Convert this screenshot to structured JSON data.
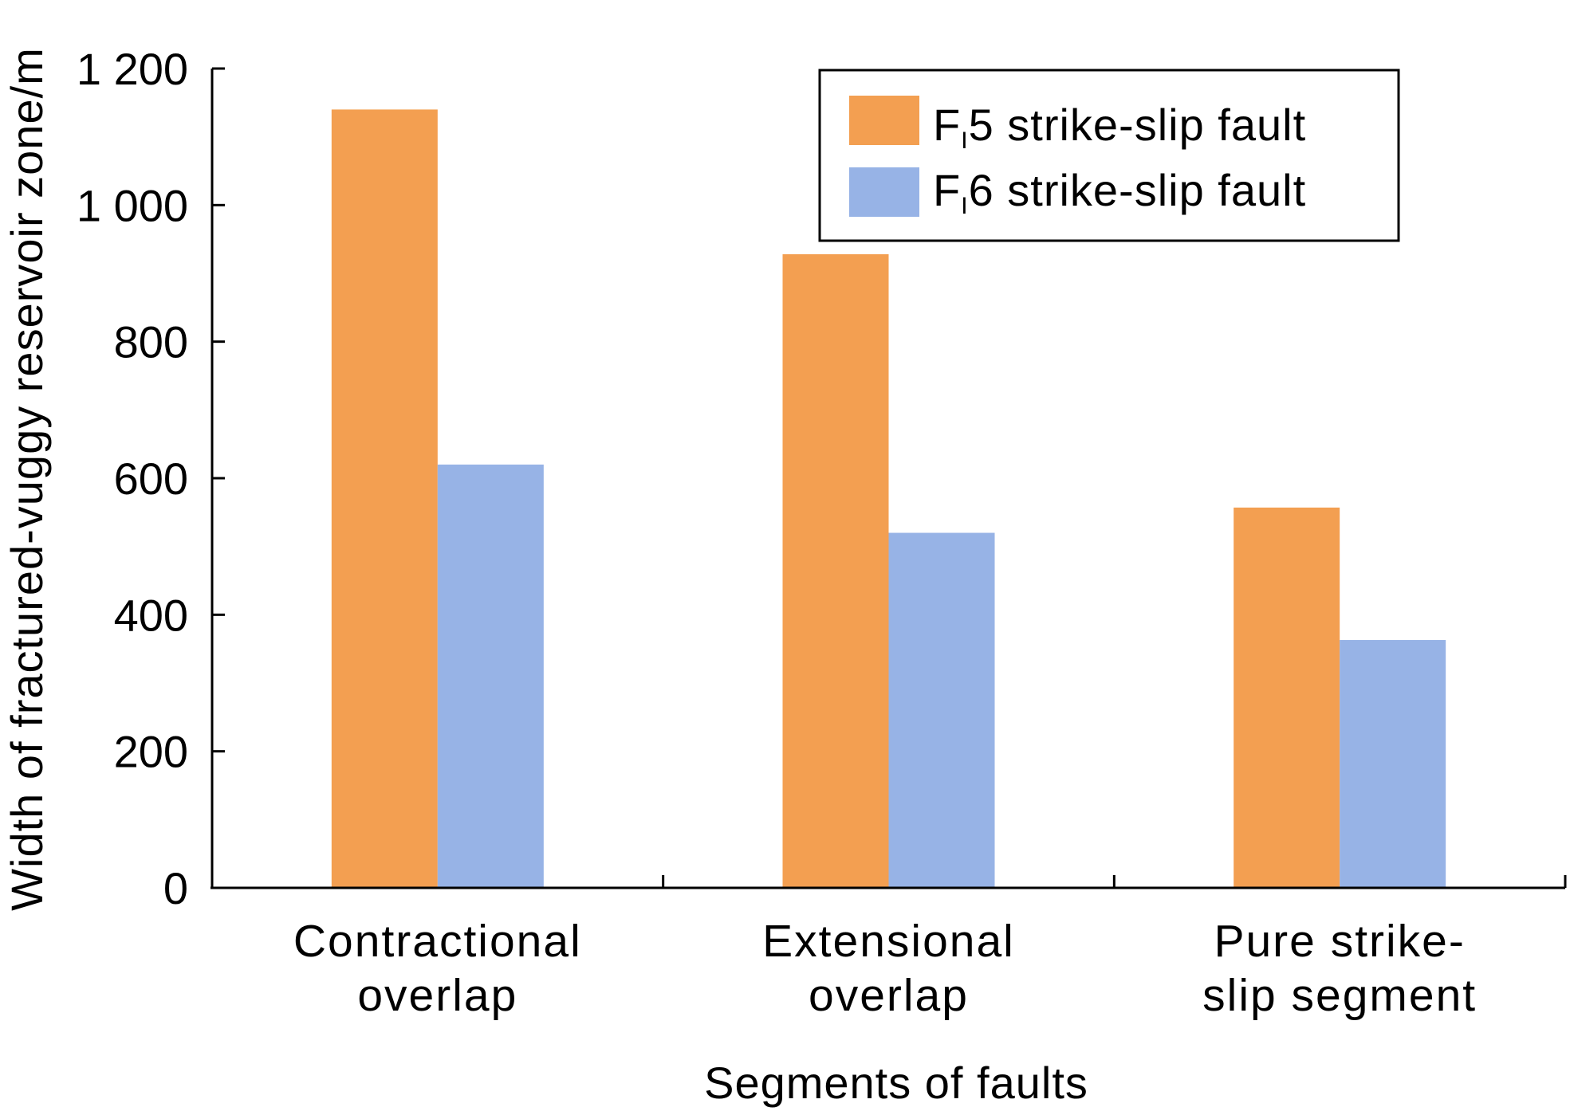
{
  "chart_data": {
    "type": "bar",
    "title": "",
    "xlabel": "Segments of faults",
    "ylabel": "Width of fractured-vuggy reservoir zone/m",
    "ylim": [
      0,
      1200
    ],
    "yticks": [
      0,
      200,
      400,
      600,
      800,
      1000,
      1200
    ],
    "ytick_labels": [
      "0",
      "200",
      "400",
      "600",
      "800",
      "1 000",
      "1 200"
    ],
    "categories": [
      [
        "Contractional",
        "overlap"
      ],
      [
        "Extensional",
        "overlap"
      ],
      [
        "Pure strike-",
        "slip segment"
      ]
    ],
    "series": [
      {
        "name": "FI5 strike-slip fault",
        "legend_main": "F",
        "legend_sub": "I",
        "legend_rest": "5 strike-slip fault",
        "color": "#f39f51",
        "values": [
          1140,
          928,
          557
        ]
      },
      {
        "name": "FI6 strike-slip fault",
        "legend_main": "F",
        "legend_sub": "I",
        "legend_rest": "6 strike-slip fault",
        "color": "#97b3e6",
        "values": [
          620,
          520,
          363
        ]
      }
    ],
    "grid": false,
    "legend_position": "top-right"
  }
}
